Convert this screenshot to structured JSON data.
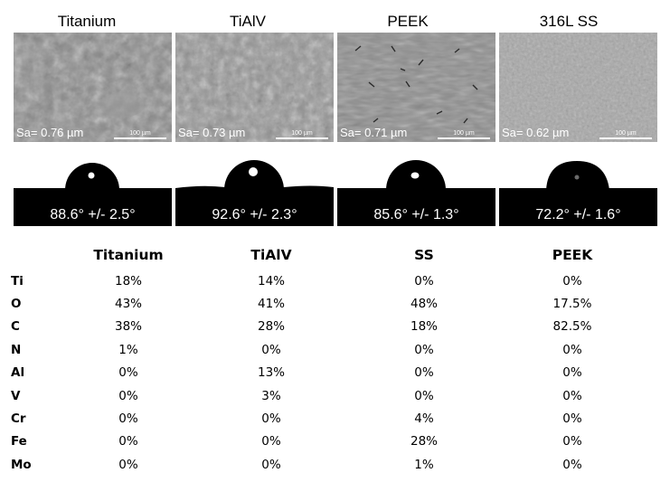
{
  "materials": [
    {
      "title": "Titanium",
      "sa": "Sa= 0.76 µm",
      "scale": "100 µm",
      "angle": "88.6° +/- 2.5°"
    },
    {
      "title": "TiAlV",
      "sa": "Sa= 0.73 µm",
      "scale": "100 µm",
      "angle": "92.6° +/- 2.3°"
    },
    {
      "title": "PEEK",
      "sa": "Sa= 0.71 µm",
      "scale": "100 µm",
      "angle": "85.6° +/- 1.3°"
    },
    {
      "title": "316L SS",
      "sa": "Sa= 0.62 µm",
      "scale": "100 µm",
      "angle": "72.2° +/- 1.6°"
    }
  ],
  "composition": {
    "headers": [
      "",
      "Titanium",
      "TiAlV",
      "SS",
      "PEEK"
    ],
    "rows": [
      {
        "element": "Ti",
        "values": [
          "18%",
          "14%",
          "0%",
          "0%"
        ]
      },
      {
        "element": "O",
        "values": [
          "43%",
          "41%",
          "48%",
          "17.5%"
        ]
      },
      {
        "element": "C",
        "values": [
          "38%",
          "28%",
          "18%",
          "82.5%"
        ]
      },
      {
        "element": "N",
        "values": [
          "1%",
          "0%",
          "0%",
          "0%"
        ]
      },
      {
        "element": "Al",
        "values": [
          "0%",
          "13%",
          "0%",
          "0%"
        ]
      },
      {
        "element": "V",
        "values": [
          "0%",
          "3%",
          "0%",
          "0%"
        ]
      },
      {
        "element": "Cr",
        "values": [
          "0%",
          "0%",
          "4%",
          "0%"
        ]
      },
      {
        "element": "Fe",
        "values": [
          "0%",
          "0%",
          "28%",
          "0%"
        ]
      },
      {
        "element": "Mo",
        "values": [
          "0%",
          "0%",
          "1%",
          "0%"
        ]
      }
    ]
  }
}
